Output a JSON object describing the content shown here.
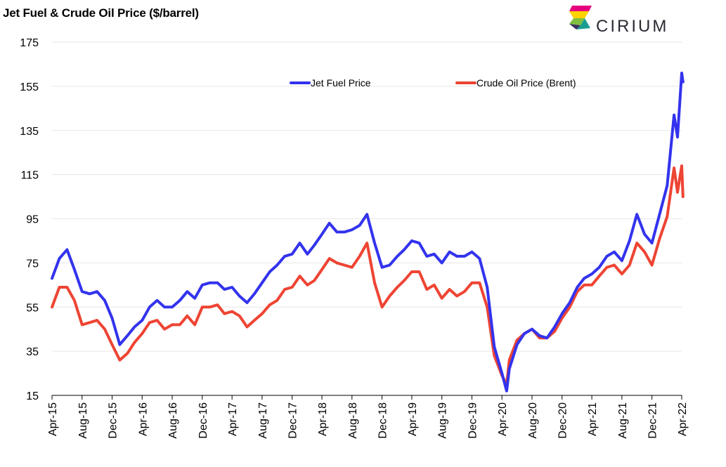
{
  "title": "Jet Fuel & Crude Oil Price ($/barrel)",
  "logo": {
    "text": "CIRIUM",
    "colors": [
      "#e5007d",
      "#ffd200",
      "#7fbf3f",
      "#1a9e8f",
      "#3a2f5f"
    ]
  },
  "chart_data": {
    "type": "line",
    "title": "Jet Fuel & Crude Oil Price ($/barrel)",
    "xlabel": "",
    "ylabel": "",
    "ylim": [
      15,
      175
    ],
    "yticks": [
      15,
      35,
      55,
      75,
      95,
      115,
      135,
      155,
      175
    ],
    "xlim": [
      "2015-04",
      "2022-04"
    ],
    "xticks": [
      "Apr-15",
      "Aug-15",
      "Dec-15",
      "Apr-16",
      "Aug-16",
      "Dec-16",
      "Apr-17",
      "Aug-17",
      "Dec-17",
      "Apr-18",
      "Aug-18",
      "Dec-18",
      "Apr-19",
      "Aug-19",
      "Dec-19",
      "Apr-20",
      "Aug-20",
      "Dec-20",
      "Apr-21",
      "Aug-21",
      "Dec-21",
      "Apr-22"
    ],
    "grid": "horizontal",
    "legend": "top-center",
    "series": [
      {
        "name": "Jet Fuel Price",
        "color": "#3333ee",
        "points": [
          [
            "2015-04-01",
            68
          ],
          [
            "2015-05-01",
            77
          ],
          [
            "2015-06-01",
            81
          ],
          [
            "2015-07-01",
            72
          ],
          [
            "2015-08-01",
            62
          ],
          [
            "2015-09-01",
            61
          ],
          [
            "2015-10-01",
            62
          ],
          [
            "2015-11-01",
            58
          ],
          [
            "2015-12-01",
            50
          ],
          [
            "2016-01-01",
            38
          ],
          [
            "2016-02-01",
            42
          ],
          [
            "2016-03-01",
            46
          ],
          [
            "2016-04-01",
            49
          ],
          [
            "2016-05-01",
            55
          ],
          [
            "2016-06-01",
            58
          ],
          [
            "2016-07-01",
            55
          ],
          [
            "2016-08-01",
            55
          ],
          [
            "2016-09-01",
            58
          ],
          [
            "2016-10-01",
            62
          ],
          [
            "2016-11-01",
            59
          ],
          [
            "2016-12-01",
            65
          ],
          [
            "2017-01-01",
            66
          ],
          [
            "2017-02-01",
            66
          ],
          [
            "2017-03-01",
            63
          ],
          [
            "2017-04-01",
            64
          ],
          [
            "2017-05-01",
            60
          ],
          [
            "2017-06-01",
            57
          ],
          [
            "2017-07-01",
            61
          ],
          [
            "2017-08-01",
            66
          ],
          [
            "2017-09-01",
            71
          ],
          [
            "2017-10-01",
            74
          ],
          [
            "2017-11-01",
            78
          ],
          [
            "2017-12-01",
            79
          ],
          [
            "2018-01-01",
            84
          ],
          [
            "2018-02-01",
            79
          ],
          [
            "2018-03-01",
            83
          ],
          [
            "2018-04-01",
            88
          ],
          [
            "2018-05-01",
            93
          ],
          [
            "2018-06-01",
            89
          ],
          [
            "2018-07-01",
            89
          ],
          [
            "2018-08-01",
            90
          ],
          [
            "2018-09-01",
            92
          ],
          [
            "2018-10-01",
            97
          ],
          [
            "2018-11-01",
            84
          ],
          [
            "2018-12-01",
            73
          ],
          [
            "2019-01-01",
            74
          ],
          [
            "2019-02-01",
            78
          ],
          [
            "2019-03-01",
            81
          ],
          [
            "2019-04-01",
            85
          ],
          [
            "2019-05-01",
            84
          ],
          [
            "2019-06-01",
            78
          ],
          [
            "2019-07-01",
            79
          ],
          [
            "2019-08-01",
            75
          ],
          [
            "2019-09-01",
            80
          ],
          [
            "2019-10-01",
            78
          ],
          [
            "2019-11-01",
            78
          ],
          [
            "2019-12-01",
            80
          ],
          [
            "2020-01-01",
            77
          ],
          [
            "2020-02-01",
            64
          ],
          [
            "2020-03-01",
            37
          ],
          [
            "2020-04-01",
            25
          ],
          [
            "2020-04-20",
            17
          ],
          [
            "2020-05-01",
            27
          ],
          [
            "2020-06-01",
            38
          ],
          [
            "2020-07-01",
            43
          ],
          [
            "2020-08-01",
            45
          ],
          [
            "2020-09-01",
            42
          ],
          [
            "2020-10-01",
            41
          ],
          [
            "2020-11-01",
            46
          ],
          [
            "2020-12-01",
            52
          ],
          [
            "2021-01-01",
            57
          ],
          [
            "2021-02-01",
            64
          ],
          [
            "2021-03-01",
            68
          ],
          [
            "2021-04-01",
            70
          ],
          [
            "2021-05-01",
            73
          ],
          [
            "2021-06-01",
            78
          ],
          [
            "2021-07-01",
            80
          ],
          [
            "2021-08-01",
            76
          ],
          [
            "2021-09-01",
            85
          ],
          [
            "2021-10-01",
            97
          ],
          [
            "2021-11-01",
            88
          ],
          [
            "2021-12-01",
            84
          ],
          [
            "2022-01-01",
            97
          ],
          [
            "2022-02-01",
            110
          ],
          [
            "2022-03-01",
            142
          ],
          [
            "2022-03-15",
            132
          ],
          [
            "2022-04-01",
            161
          ],
          [
            "2022-04-06",
            157
          ]
        ]
      },
      {
        "name": "Crude Oil Price (Brent)",
        "color": "#ee4433",
        "points": [
          [
            "2015-04-01",
            55
          ],
          [
            "2015-05-01",
            64
          ],
          [
            "2015-06-01",
            64
          ],
          [
            "2015-07-01",
            58
          ],
          [
            "2015-08-01",
            47
          ],
          [
            "2015-09-01",
            48
          ],
          [
            "2015-10-01",
            49
          ],
          [
            "2015-11-01",
            45
          ],
          [
            "2015-12-01",
            38
          ],
          [
            "2016-01-01",
            31
          ],
          [
            "2016-02-01",
            34
          ],
          [
            "2016-03-01",
            39
          ],
          [
            "2016-04-01",
            43
          ],
          [
            "2016-05-01",
            48
          ],
          [
            "2016-06-01",
            49
          ],
          [
            "2016-07-01",
            45
          ],
          [
            "2016-08-01",
            47
          ],
          [
            "2016-09-01",
            47
          ],
          [
            "2016-10-01",
            51
          ],
          [
            "2016-11-01",
            47
          ],
          [
            "2016-12-01",
            55
          ],
          [
            "2017-01-01",
            55
          ],
          [
            "2017-02-01",
            56
          ],
          [
            "2017-03-01",
            52
          ],
          [
            "2017-04-01",
            53
          ],
          [
            "2017-05-01",
            51
          ],
          [
            "2017-06-01",
            46
          ],
          [
            "2017-07-01",
            49
          ],
          [
            "2017-08-01",
            52
          ],
          [
            "2017-09-01",
            56
          ],
          [
            "2017-10-01",
            58
          ],
          [
            "2017-11-01",
            63
          ],
          [
            "2017-12-01",
            64
          ],
          [
            "2018-01-01",
            69
          ],
          [
            "2018-02-01",
            65
          ],
          [
            "2018-03-01",
            67
          ],
          [
            "2018-04-01",
            72
          ],
          [
            "2018-05-01",
            77
          ],
          [
            "2018-06-01",
            75
          ],
          [
            "2018-07-01",
            74
          ],
          [
            "2018-08-01",
            73
          ],
          [
            "2018-09-01",
            78
          ],
          [
            "2018-10-01",
            84
          ],
          [
            "2018-11-01",
            66
          ],
          [
            "2018-12-01",
            55
          ],
          [
            "2019-01-01",
            60
          ],
          [
            "2019-02-01",
            64
          ],
          [
            "2019-03-01",
            67
          ],
          [
            "2019-04-01",
            71
          ],
          [
            "2019-05-01",
            71
          ],
          [
            "2019-06-01",
            63
          ],
          [
            "2019-07-01",
            65
          ],
          [
            "2019-08-01",
            59
          ],
          [
            "2019-09-01",
            63
          ],
          [
            "2019-10-01",
            60
          ],
          [
            "2019-11-01",
            62
          ],
          [
            "2019-12-01",
            66
          ],
          [
            "2020-01-01",
            66
          ],
          [
            "2020-02-01",
            55
          ],
          [
            "2020-03-01",
            33
          ],
          [
            "2020-04-01",
            24
          ],
          [
            "2020-04-20",
            20
          ],
          [
            "2020-05-01",
            31
          ],
          [
            "2020-06-01",
            40
          ],
          [
            "2020-07-01",
            43
          ],
          [
            "2020-08-01",
            45
          ],
          [
            "2020-09-01",
            41
          ],
          [
            "2020-10-01",
            41
          ],
          [
            "2020-11-01",
            44
          ],
          [
            "2020-12-01",
            50
          ],
          [
            "2021-01-01",
            55
          ],
          [
            "2021-02-01",
            62
          ],
          [
            "2021-03-01",
            65
          ],
          [
            "2021-04-01",
            65
          ],
          [
            "2021-05-01",
            69
          ],
          [
            "2021-06-01",
            73
          ],
          [
            "2021-07-01",
            74
          ],
          [
            "2021-08-01",
            70
          ],
          [
            "2021-09-01",
            74
          ],
          [
            "2021-10-01",
            84
          ],
          [
            "2021-11-01",
            80
          ],
          [
            "2021-12-01",
            74
          ],
          [
            "2022-01-01",
            86
          ],
          [
            "2022-02-01",
            96
          ],
          [
            "2022-03-01",
            118
          ],
          [
            "2022-03-15",
            107
          ],
          [
            "2022-04-01",
            119
          ],
          [
            "2022-04-06",
            105
          ]
        ]
      }
    ]
  }
}
